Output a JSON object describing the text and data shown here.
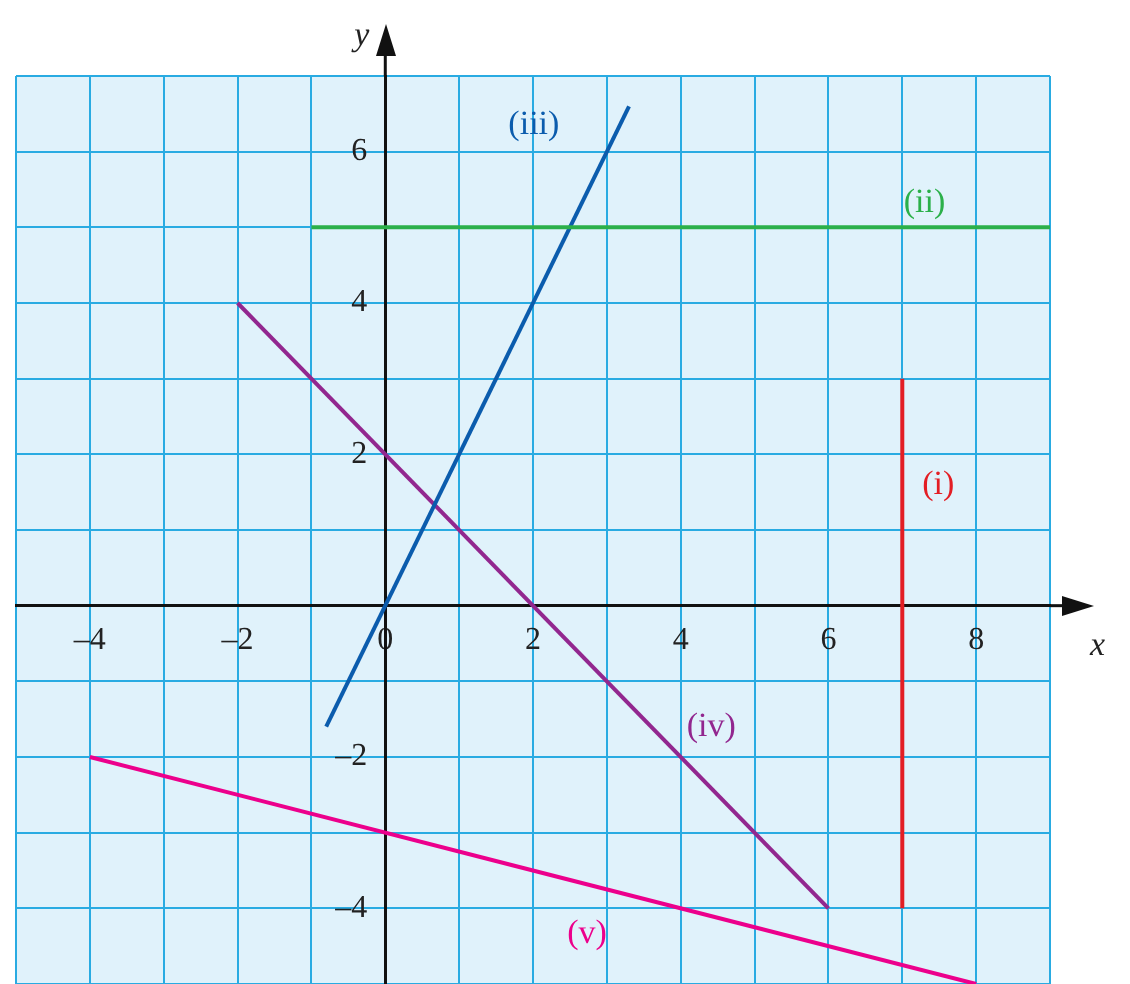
{
  "chart_data": {
    "type": "line",
    "xlabel": "x",
    "ylabel": "y",
    "xlim": [
      -5,
      9
    ],
    "ylim": [
      -5,
      7
    ],
    "xticks": [
      {
        "value": -5,
        "label": null
      },
      {
        "value": -4,
        "label": "–4"
      },
      {
        "value": -3,
        "label": null
      },
      {
        "value": -2,
        "label": "–2"
      },
      {
        "value": -1,
        "label": null
      },
      0,
      {
        "value": 1,
        "label": null
      },
      2,
      {
        "value": 3,
        "label": null
      },
      4,
      {
        "value": 5,
        "label": null
      },
      6,
      {
        "value": 7,
        "label": null
      },
      8,
      {
        "value": 9,
        "label": null
      }
    ],
    "yticks": [
      {
        "value": -5,
        "label": null
      },
      {
        "value": -4,
        "label": "–4"
      },
      {
        "value": -3,
        "label": null
      },
      {
        "value": -2,
        "label": "–2"
      },
      {
        "value": -1,
        "label": null
      },
      {
        "value": 0,
        "label": null
      },
      {
        "value": 1,
        "label": null
      },
      2,
      {
        "value": 3,
        "label": null
      },
      4,
      {
        "value": 5,
        "label": null
      },
      6,
      {
        "value": 7,
        "label": null
      }
    ],
    "grid": true,
    "legend": false,
    "marker": "none",
    "line_style": "solid",
    "series": [
      {
        "name": "(i)",
        "color": "#e31e24",
        "x": [
          7,
          7
        ],
        "values": [
          -4,
          3
        ]
      },
      {
        "name": "(ii)",
        "color": "#2bb04a",
        "x": [
          -1,
          9
        ],
        "values": [
          5,
          5
        ]
      },
      {
        "name": "(iii)",
        "color": "#0b5cad",
        "x": [
          -0.8,
          3.3
        ],
        "values": [
          -1.6,
          6.6
        ]
      },
      {
        "name": "(iv)",
        "color": "#92278f",
        "x": [
          -2,
          6
        ],
        "values": [
          4,
          -4
        ]
      },
      {
        "name": "(v)",
        "color": "#ec008c",
        "x": [
          -4,
          8
        ],
        "values": [
          -2,
          -5
        ]
      }
    ]
  }
}
